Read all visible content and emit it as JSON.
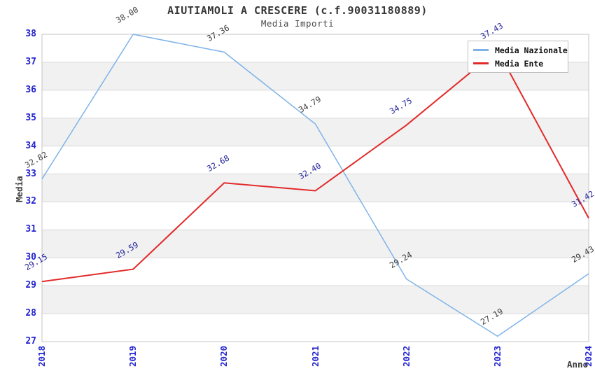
{
  "title": "AIUTIAMOLI A CRESCERE (c.f.90031180889)",
  "subtitle": "Media Importi",
  "y_axis": {
    "label": "Media",
    "min": 27,
    "max": 38,
    "tick_step": 1
  },
  "x_axis": {
    "label": "Anno",
    "ticks": [
      "2018",
      "2019",
      "2020",
      "2021",
      "2022",
      "2023",
      "2024"
    ]
  },
  "legend": {
    "position": "top-right",
    "items": [
      {
        "label": "Media Nazionale",
        "color": "#7FB3E8"
      },
      {
        "label": "Media Ente",
        "color": "#E22A2A"
      }
    ]
  },
  "chart_data": {
    "type": "line",
    "title": "AIUTIAMOLI A CRESCERE (c.f.90031180889)",
    "subtitle": "Media Importi",
    "xlabel": "Anno",
    "ylabel": "Media",
    "categories": [
      2018,
      2019,
      2020,
      2021,
      2022,
      2023,
      2024
    ],
    "series": [
      {
        "name": "Media Nazionale",
        "color": "#7FB3E8",
        "label_color": "#3D3D3D",
        "line_width": 1.5,
        "values": [
          32.82,
          38.0,
          37.36,
          34.79,
          29.24,
          27.19,
          29.43
        ],
        "labels": [
          "32.82",
          "38.00",
          "37.36",
          "34.79",
          "29.24",
          "27.19",
          "29.43"
        ]
      },
      {
        "name": "Media Ente",
        "color": "#E22A2A",
        "label_color": "#26269B",
        "line_width": 2,
        "values": [
          29.15,
          29.59,
          32.68,
          32.4,
          34.75,
          37.43,
          31.42
        ],
        "labels": [
          "29.15",
          "29.59",
          "32.68",
          "32.40",
          "34.75",
          "37.43",
          "31.42"
        ]
      }
    ],
    "ylim": [
      27,
      38
    ],
    "grid": "horizontal lines each integer, alternating gray bands 28-29, 30-31, 32-33, 34-35, 36-37",
    "legend_position": "top-right"
  },
  "colors": {
    "tick_label": "#2323CF",
    "band_fill": "#F1F1F1",
    "gridline": "#D9D9D9",
    "plot_border": "#C4C4C4",
    "title_text": "#373737"
  }
}
